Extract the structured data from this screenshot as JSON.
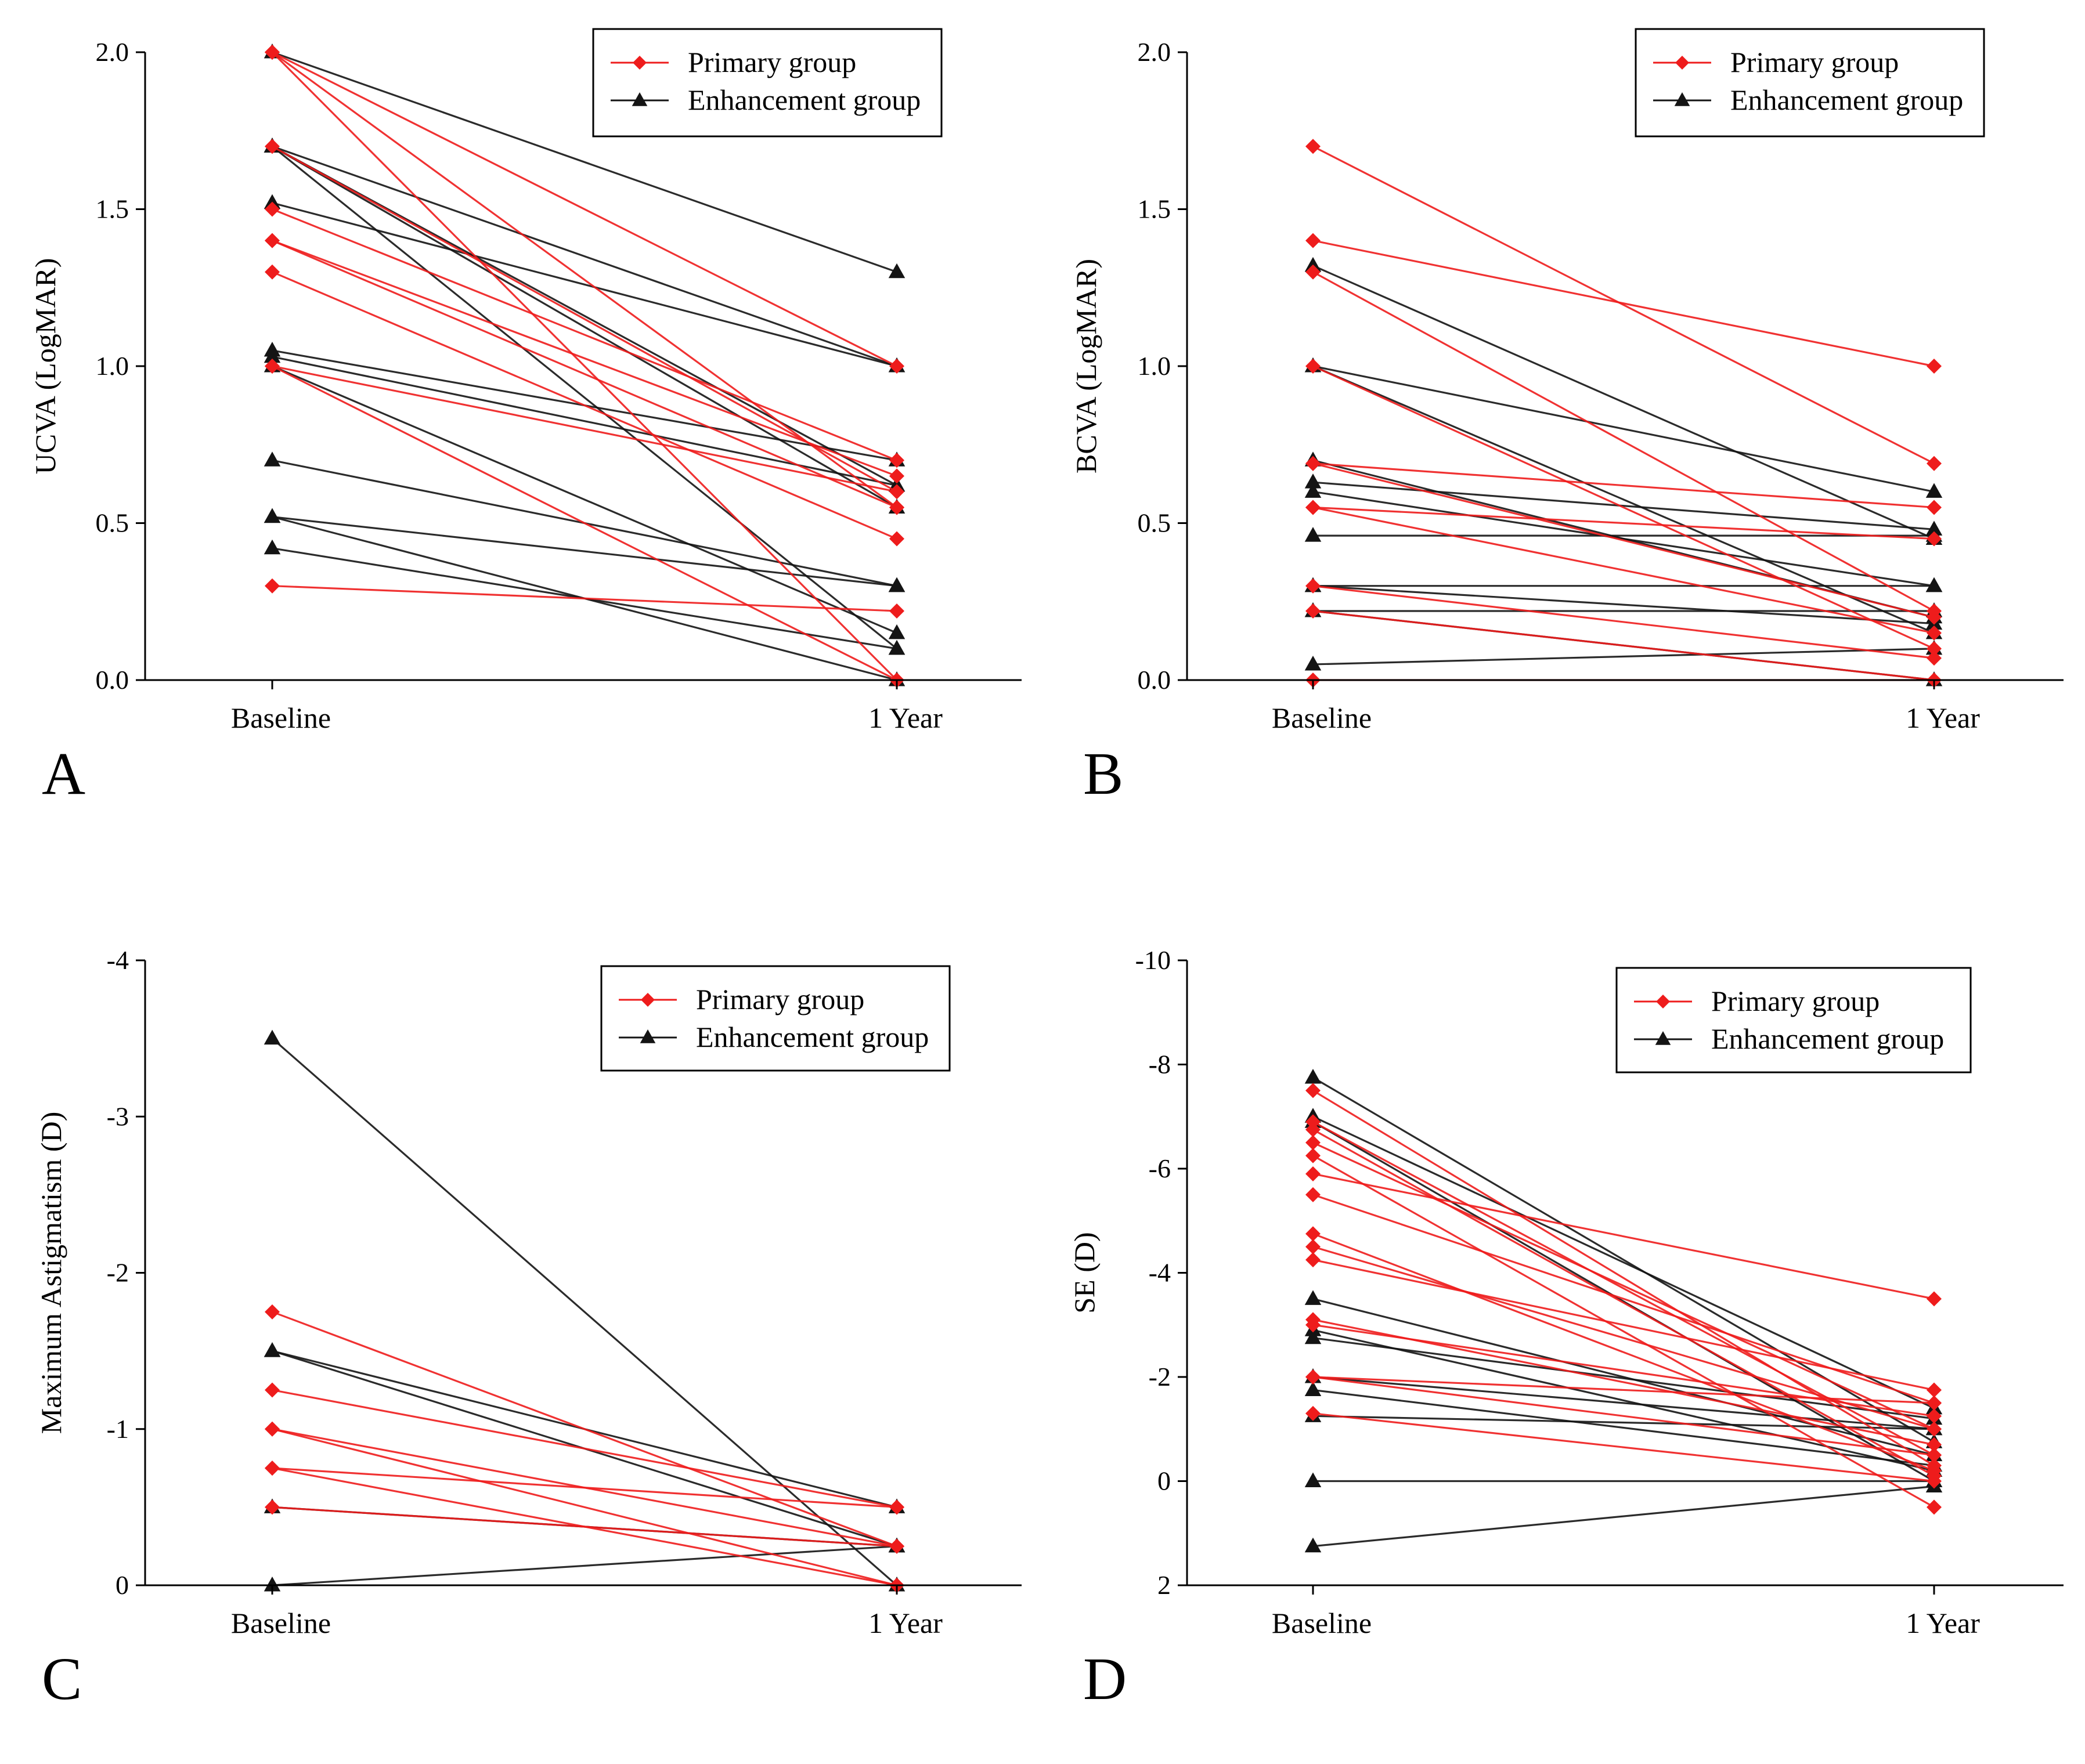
{
  "colors": {
    "primary": "#ee1c1c",
    "enhancement": "#141414",
    "axis": "#000000"
  },
  "chart_data": [
    {
      "type": "line",
      "panel_label": "A",
      "title": "",
      "xlabel": "",
      "ylabel": "UCVA (LogMAR)",
      "categories": [
        "Baseline",
        "1 Year"
      ],
      "ylim": [
        0.0,
        2.0
      ],
      "yticks": [
        0.0,
        0.5,
        1.0,
        1.5,
        2.0
      ],
      "ytick_labels": [
        "0.0",
        "0.5",
        "1.0",
        "1.5",
        "2.0"
      ],
      "inverted": false,
      "legend": {
        "placement": "top-right",
        "entries": [
          "Primary group",
          "Enhancement group"
        ]
      },
      "series": [
        {
          "name": "Primary group",
          "pairs": [
            [
              2.0,
              1.0
            ],
            [
              2.0,
              0.55
            ],
            [
              2.0,
              0.0
            ],
            [
              1.7,
              0.6
            ],
            [
              1.5,
              0.7
            ],
            [
              1.4,
              0.65
            ],
            [
              1.4,
              0.55
            ],
            [
              1.3,
              0.45
            ],
            [
              1.0,
              0.6
            ],
            [
              1.0,
              0.0
            ],
            [
              0.3,
              0.22
            ]
          ]
        },
        {
          "name": "Enhancement group",
          "pairs": [
            [
              2.0,
              1.3
            ],
            [
              1.7,
              1.0
            ],
            [
              1.7,
              0.62
            ],
            [
              1.7,
              0.55
            ],
            [
              1.7,
              0.1
            ],
            [
              1.52,
              1.0
            ],
            [
              1.05,
              0.7
            ],
            [
              1.03,
              0.62
            ],
            [
              1.0,
              0.15
            ],
            [
              0.7,
              0.3
            ],
            [
              0.52,
              0.3
            ],
            [
              0.52,
              0.0
            ],
            [
              0.42,
              0.1
            ]
          ]
        }
      ]
    },
    {
      "type": "line",
      "panel_label": "B",
      "title": "",
      "xlabel": "",
      "ylabel": "BCVA (LogMAR)",
      "categories": [
        "Baseline",
        "1 Year"
      ],
      "ylim": [
        0.0,
        2.0
      ],
      "yticks": [
        0.0,
        0.5,
        1.0,
        1.5,
        2.0
      ],
      "ytick_labels": [
        "0.0",
        "0.5",
        "1.0",
        "1.5",
        "2.0"
      ],
      "inverted": false,
      "legend": {
        "placement": "top-right",
        "entries": [
          "Primary group",
          "Enhancement group"
        ]
      },
      "series": [
        {
          "name": "Primary group",
          "pairs": [
            [
              1.7,
              0.69
            ],
            [
              1.4,
              1.0
            ],
            [
              1.3,
              0.22
            ],
            [
              1.0,
              0.1
            ],
            [
              0.69,
              0.55
            ],
            [
              0.69,
              0.2
            ],
            [
              0.55,
              0.45
            ],
            [
              0.55,
              0.15
            ],
            [
              0.3,
              0.07
            ],
            [
              0.22,
              0.0
            ],
            [
              0.0,
              0.0
            ]
          ]
        },
        {
          "name": "Enhancement group",
          "pairs": [
            [
              1.32,
              0.45
            ],
            [
              1.0,
              0.6
            ],
            [
              1.0,
              0.15
            ],
            [
              0.7,
              0.2
            ],
            [
              0.63,
              0.48
            ],
            [
              0.6,
              0.3
            ],
            [
              0.46,
              0.46
            ],
            [
              0.3,
              0.3
            ],
            [
              0.3,
              0.18
            ],
            [
              0.22,
              0.22
            ],
            [
              0.22,
              0.0
            ],
            [
              0.05,
              0.1
            ]
          ]
        }
      ]
    },
    {
      "type": "line",
      "panel_label": "C",
      "title": "",
      "xlabel": "",
      "ylabel": "Maximum Astigmatism (D)",
      "categories": [
        "Baseline",
        "1 Year"
      ],
      "ylim": [
        0,
        -4
      ],
      "yticks": [
        0,
        -1,
        -2,
        -3,
        -4
      ],
      "ytick_labels": [
        "0",
        "-1",
        "-2",
        "-3",
        "-4"
      ],
      "inverted": true,
      "legend": {
        "placement": "top-right",
        "entries": [
          "Primary group",
          "Enhancement group"
        ]
      },
      "series": [
        {
          "name": "Primary group",
          "pairs": [
            [
              -1.75,
              -0.25
            ],
            [
              -1.25,
              -0.5
            ],
            [
              -1.0,
              -0.25
            ],
            [
              -1.0,
              0.0
            ],
            [
              -0.75,
              -0.5
            ],
            [
              -0.75,
              0.0
            ],
            [
              -0.5,
              -0.25
            ]
          ]
        },
        {
          "name": "Enhancement group",
          "pairs": [
            [
              -3.5,
              0.0
            ],
            [
              -1.5,
              -0.5
            ],
            [
              -1.5,
              -0.25
            ],
            [
              -0.5,
              -0.25
            ],
            [
              0.0,
              -0.25
            ]
          ]
        }
      ]
    },
    {
      "type": "line",
      "panel_label": "D",
      "title": "",
      "xlabel": "",
      "ylabel": "SE (D)",
      "categories": [
        "Baseline",
        "1 Year"
      ],
      "ylim": [
        2,
        -10
      ],
      "yticks": [
        2,
        0,
        -2,
        -4,
        -6,
        -8,
        -10
      ],
      "ytick_labels": [
        "2",
        "0",
        "-2",
        "-4",
        "-6",
        "-8",
        "-10"
      ],
      "inverted": true,
      "legend": {
        "placement": "top-right",
        "entries": [
          "Primary group",
          "Enhancement group"
        ]
      },
      "series": [
        {
          "name": "Primary group",
          "pairs": [
            [
              -7.5,
              -0.3
            ],
            [
              -6.9,
              -0.5
            ],
            [
              -6.75,
              -0.1
            ],
            [
              -6.5,
              -1.0
            ],
            [
              -6.25,
              0.5
            ],
            [
              -5.9,
              -3.5
            ],
            [
              -5.5,
              -1.5
            ],
            [
              -4.75,
              -0.2
            ],
            [
              -4.5,
              -1.0
            ],
            [
              -4.25,
              -1.75
            ],
            [
              -3.1,
              -0.7
            ],
            [
              -3.0,
              -1.25
            ],
            [
              -2.0,
              -1.5
            ],
            [
              -2.0,
              -0.5
            ],
            [
              -1.3,
              0.0
            ]
          ]
        },
        {
          "name": "Enhancement group",
          "pairs": [
            [
              -7.75,
              -0.75
            ],
            [
              -7.0,
              -1.4
            ],
            [
              -6.9,
              0.0
            ],
            [
              -3.5,
              -0.5
            ],
            [
              -2.9,
              -0.2
            ],
            [
              -2.75,
              -1.2
            ],
            [
              -2.0,
              -1.0
            ],
            [
              -1.75,
              -0.3
            ],
            [
              -1.25,
              -1.0
            ],
            [
              0.0,
              0.0
            ],
            [
              1.25,
              0.1
            ]
          ]
        }
      ]
    }
  ]
}
